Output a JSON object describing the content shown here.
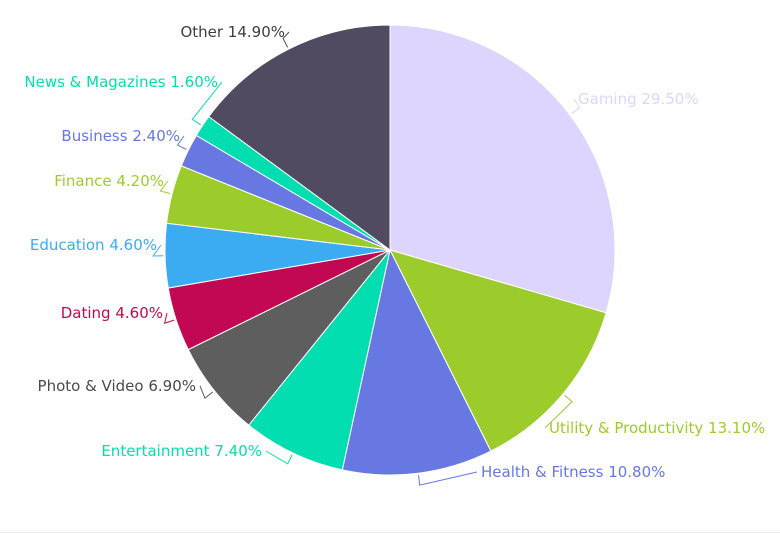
{
  "chart_data": {
    "type": "pie",
    "title": "",
    "legend": "none",
    "start_angle_deg": 0,
    "direction": "clockwise",
    "slices": [
      {
        "label": "Gaming 29.50%",
        "category": "Gaming",
        "value": 29.5,
        "color": "#ddd5fd"
      },
      {
        "label": "Utility & Productivity 13.10%",
        "category": "Utility & Productivity",
        "value": 13.1,
        "color": "#9ccc2c"
      },
      {
        "label": "Health & Fitness 10.80%",
        "category": "Health & Fitness",
        "value": 10.8,
        "color": "#6778e2"
      },
      {
        "label": "Entertainment 7.40%",
        "category": "Entertainment",
        "value": 7.4,
        "color": "#03deb0"
      },
      {
        "label": "Photo & Video 6.90%",
        "category": "Photo & Video",
        "value": 6.9,
        "color": "#5e5e5e"
      },
      {
        "label": "Dating 4.60%",
        "category": "Dating",
        "value": 4.6,
        "color": "#c20852"
      },
      {
        "label": "Education 4.60%",
        "category": "Education",
        "value": 4.6,
        "color": "#3bacf2"
      },
      {
        "label": "Finance 4.20%",
        "category": "Finance",
        "value": 4.2,
        "color": "#9ccc2c"
      },
      {
        "label": "Business 2.40%",
        "category": "Business",
        "value": 2.4,
        "color": "#6778e2"
      },
      {
        "label": "News & Magazines 1.60%",
        "category": "News & Magazines",
        "value": 1.6,
        "color": "#03deb0"
      },
      {
        "label": "Other 14.90%",
        "category": "Other",
        "value": 14.9,
        "color": "#514b61"
      }
    ]
  }
}
